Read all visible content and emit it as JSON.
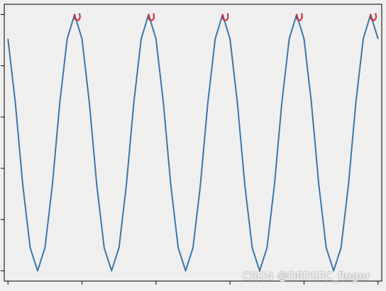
{
  "chart_data": {
    "type": "line",
    "x": [
      0,
      1,
      2,
      3,
      4,
      5,
      6,
      7,
      8,
      9,
      10,
      11,
      12,
      13,
      14,
      15,
      16,
      17,
      18,
      19,
      20,
      21,
      22,
      23,
      24,
      25,
      26,
      27,
      28,
      29,
      30,
      31,
      32,
      33,
      34,
      35,
      36,
      37,
      38,
      39,
      40,
      41,
      42,
      43,
      44,
      45,
      46,
      47,
      48,
      49,
      50
    ],
    "series": [
      {
        "values": [
          0.905,
          0.655,
          0.335,
          0.09,
          0.0,
          0.09,
          0.335,
          0.655,
          0.905,
          1.0,
          0.905,
          0.655,
          0.335,
          0.09,
          0.0,
          0.09,
          0.335,
          0.655,
          0.905,
          1.0,
          0.905,
          0.655,
          0.335,
          0.09,
          0.0,
          0.09,
          0.335,
          0.655,
          0.905,
          1.0,
          0.905,
          0.655,
          0.335,
          0.09,
          0.0,
          0.09,
          0.335,
          0.655,
          0.905,
          1.0,
          0.905,
          0.655,
          0.335,
          0.09,
          0.0,
          0.09,
          0.335,
          0.655,
          0.905,
          1.0,
          0.905
        ],
        "color": "#3a76af"
      }
    ],
    "peak_markers": {
      "x": [
        9,
        19,
        29,
        39,
        49
      ],
      "y": [
        1.0,
        1.0,
        1.0,
        1.0,
        1.0
      ],
      "color": "#d62728",
      "shape": "hook"
    },
    "xlim": [
      -0.5,
      50.5
    ],
    "ylim": [
      -0.04,
      1.04
    ],
    "xticks": [
      0,
      10,
      20,
      30,
      40,
      50
    ],
    "yticks": [
      0.0,
      0.2,
      0.4,
      0.6,
      0.8,
      1.0
    ],
    "tick_labels_visible": false,
    "grid": false,
    "title": "",
    "xlabel": "",
    "ylabel": ""
  },
  "watermark": "CSDN @DEDSEC_Roger"
}
